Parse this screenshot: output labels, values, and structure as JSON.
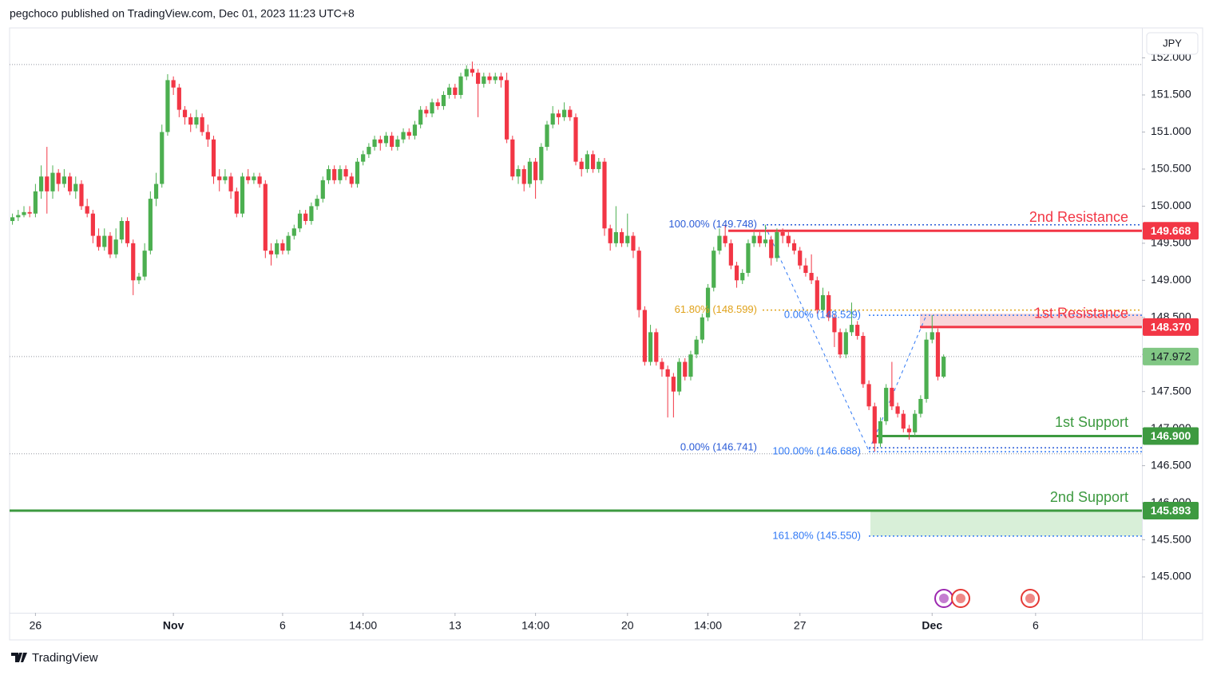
{
  "header": {
    "attribution": "pegchoco published on TradingView.com, Dec 01, 2023 11:23 UTC+8",
    "currency": "JPY",
    "brand": "TradingView"
  },
  "chart_data": {
    "type": "candlestick",
    "up_color": "#4caf50",
    "down_color": "#f23645",
    "xlim": [
      -0.5,
      196.5
    ],
    "xticks": [
      {
        "value": 4,
        "label": "26"
      },
      {
        "value": 28,
        "label": "Nov"
      },
      {
        "value": 47,
        "label": "6"
      },
      {
        "value": 61,
        "label": "14:00"
      },
      {
        "value": 77,
        "label": "13"
      },
      {
        "value": 91,
        "label": "14:00"
      },
      {
        "value": 107,
        "label": "20"
      },
      {
        "value": 121,
        "label": "14:00"
      },
      {
        "value": 137,
        "label": "27"
      },
      {
        "value": 160,
        "label": "Dec"
      },
      {
        "value": 178,
        "label": "6"
      }
    ],
    "ylim": [
      144.516,
      152.404
    ],
    "yticks": [
      {
        "value": 145,
        "label": "145.000"
      },
      {
        "value": 145.5,
        "label": "145.500"
      },
      {
        "value": 146,
        "label": "146.000"
      },
      {
        "value": 146.5,
        "label": "146.500"
      },
      {
        "value": 147,
        "label": "147.000"
      },
      {
        "value": 147.5,
        "label": "147.500"
      },
      {
        "value": 148,
        "label": "148.000"
      },
      {
        "value": 148.5,
        "label": "148.500"
      },
      {
        "value": 149,
        "label": "149.000"
      },
      {
        "value": 149.5,
        "label": "149.500"
      },
      {
        "value": 150,
        "label": "150.000"
      },
      {
        "value": 150.5,
        "label": "150.500"
      },
      {
        "value": 151,
        "label": "151.000"
      },
      {
        "value": 151.5,
        "label": "151.500"
      },
      {
        "value": 152,
        "label": "152.000"
      }
    ],
    "ohlc": [
      [
        149.8,
        149.9,
        149.75,
        149.85
      ],
      [
        149.85,
        149.95,
        149.8,
        149.88
      ],
      [
        149.88,
        150.0,
        149.85,
        149.92
      ],
      [
        149.92,
        150.0,
        149.85,
        149.9
      ],
      [
        149.9,
        150.3,
        149.85,
        150.2
      ],
      [
        150.2,
        150.55,
        150.1,
        150.4
      ],
      [
        150.4,
        150.8,
        149.9,
        150.2
      ],
      [
        150.2,
        150.55,
        150.1,
        150.45
      ],
      [
        150.45,
        150.5,
        150.2,
        150.3
      ],
      [
        150.3,
        150.5,
        150.25,
        150.4
      ],
      [
        150.4,
        150.45,
        150.15,
        150.2
      ],
      [
        150.2,
        150.4,
        150.1,
        150.3
      ],
      [
        150.3,
        150.35,
        149.95,
        150.0
      ],
      [
        150.0,
        150.1,
        149.85,
        149.9
      ],
      [
        149.9,
        149.95,
        149.5,
        149.6
      ],
      [
        149.6,
        149.7,
        149.4,
        149.45
      ],
      [
        149.45,
        149.7,
        149.4,
        149.6
      ],
      [
        149.6,
        149.65,
        149.3,
        149.35
      ],
      [
        149.35,
        149.7,
        149.3,
        149.55
      ],
      [
        149.55,
        149.85,
        149.5,
        149.8
      ],
      [
        149.8,
        149.85,
        149.45,
        149.5
      ],
      [
        149.5,
        149.55,
        148.8,
        149.0
      ],
      [
        149.0,
        149.1,
        148.95,
        149.05
      ],
      [
        149.05,
        149.5,
        149.0,
        149.4
      ],
      [
        149.4,
        150.2,
        149.35,
        150.1
      ],
      [
        150.1,
        150.45,
        150.0,
        150.3
      ],
      [
        150.3,
        151.1,
        150.25,
        151.0
      ],
      [
        151.0,
        151.78,
        150.95,
        151.7
      ],
      [
        151.7,
        151.75,
        151.5,
        151.6
      ],
      [
        151.6,
        151.65,
        151.2,
        151.3
      ],
      [
        151.3,
        151.35,
        151.1,
        151.2
      ],
      [
        151.2,
        151.25,
        151.0,
        151.1
      ],
      [
        151.1,
        151.3,
        151.05,
        151.2
      ],
      [
        151.2,
        151.25,
        150.95,
        151.0
      ],
      [
        151.0,
        151.1,
        150.8,
        150.9
      ],
      [
        150.9,
        150.95,
        150.3,
        150.4
      ],
      [
        150.4,
        150.5,
        150.2,
        150.35
      ],
      [
        150.35,
        150.5,
        150.3,
        150.4
      ],
      [
        150.4,
        150.45,
        150.1,
        150.2
      ],
      [
        150.2,
        150.25,
        149.85,
        149.9
      ],
      [
        149.9,
        150.45,
        149.85,
        150.4
      ],
      [
        150.4,
        150.5,
        150.3,
        150.35
      ],
      [
        150.35,
        150.45,
        150.3,
        150.4
      ],
      [
        150.4,
        150.45,
        150.25,
        150.3
      ],
      [
        150.3,
        150.35,
        149.3,
        149.4
      ],
      [
        149.4,
        149.5,
        149.2,
        149.35
      ],
      [
        149.35,
        149.55,
        149.3,
        149.5
      ],
      [
        149.5,
        149.55,
        149.35,
        149.4
      ],
      [
        149.4,
        149.65,
        149.35,
        149.6
      ],
      [
        149.6,
        149.75,
        149.55,
        149.7
      ],
      [
        149.7,
        149.95,
        149.65,
        149.9
      ],
      [
        149.9,
        149.95,
        149.75,
        149.8
      ],
      [
        149.8,
        150.05,
        149.75,
        150.0
      ],
      [
        150.0,
        150.15,
        149.95,
        150.1
      ],
      [
        150.1,
        150.4,
        150.05,
        150.35
      ],
      [
        150.35,
        150.55,
        150.3,
        150.5
      ],
      [
        150.5,
        150.55,
        150.3,
        150.35
      ],
      [
        150.35,
        150.55,
        150.3,
        150.5
      ],
      [
        150.5,
        150.55,
        150.35,
        150.4
      ],
      [
        150.4,
        150.45,
        150.25,
        150.3
      ],
      [
        150.3,
        150.65,
        150.25,
        150.6
      ],
      [
        150.6,
        150.75,
        150.55,
        150.7
      ],
      [
        150.7,
        150.85,
        150.65,
        150.8
      ],
      [
        150.8,
        150.95,
        150.75,
        150.9
      ],
      [
        150.9,
        150.95,
        150.75,
        150.85
      ],
      [
        150.85,
        151.0,
        150.8,
        150.95
      ],
      [
        150.95,
        151.0,
        150.75,
        150.8
      ],
      [
        150.8,
        150.95,
        150.75,
        150.9
      ],
      [
        150.9,
        151.05,
        150.85,
        151.0
      ],
      [
        151.0,
        151.05,
        150.9,
        150.95
      ],
      [
        150.95,
        151.15,
        150.9,
        151.1
      ],
      [
        151.1,
        151.35,
        151.05,
        151.3
      ],
      [
        151.3,
        151.35,
        151.2,
        151.25
      ],
      [
        151.25,
        151.45,
        151.2,
        151.4
      ],
      [
        151.4,
        151.45,
        151.3,
        151.35
      ],
      [
        151.35,
        151.55,
        151.3,
        151.5
      ],
      [
        151.5,
        151.65,
        151.45,
        151.6
      ],
      [
        151.6,
        151.65,
        151.45,
        151.5
      ],
      [
        151.5,
        151.8,
        151.45,
        151.75
      ],
      [
        151.75,
        151.9,
        151.7,
        151.85
      ],
      [
        151.85,
        151.95,
        151.75,
        151.8
      ],
      [
        151.8,
        151.85,
        151.2,
        151.65
      ],
      [
        151.65,
        151.8,
        151.6,
        151.75
      ],
      [
        151.75,
        151.8,
        151.65,
        151.7
      ],
      [
        151.7,
        151.8,
        151.65,
        151.75
      ],
      [
        151.75,
        151.8,
        151.6,
        151.7
      ],
      [
        151.7,
        151.8,
        150.85,
        150.9
      ],
      [
        150.9,
        150.95,
        150.35,
        150.4
      ],
      [
        150.4,
        150.55,
        150.3,
        150.5
      ],
      [
        150.5,
        150.55,
        150.2,
        150.3
      ],
      [
        150.3,
        150.65,
        150.25,
        150.6
      ],
      [
        150.6,
        150.65,
        150.1,
        150.35
      ],
      [
        150.35,
        150.85,
        150.3,
        150.8
      ],
      [
        150.8,
        151.15,
        150.75,
        151.1
      ],
      [
        151.1,
        151.35,
        151.05,
        151.25
      ],
      [
        151.25,
        151.3,
        151.1,
        151.2
      ],
      [
        151.2,
        151.4,
        151.15,
        151.3
      ],
      [
        151.3,
        151.35,
        151.15,
        151.2
      ],
      [
        151.2,
        151.25,
        150.55,
        150.6
      ],
      [
        150.6,
        150.65,
        150.4,
        150.5
      ],
      [
        150.5,
        150.75,
        150.45,
        150.7
      ],
      [
        150.7,
        150.75,
        150.45,
        150.5
      ],
      [
        150.5,
        150.65,
        150.45,
        150.6
      ],
      [
        150.6,
        150.65,
        149.6,
        149.7
      ],
      [
        149.7,
        149.75,
        149.4,
        149.5
      ],
      [
        149.5,
        150.0,
        149.45,
        149.65
      ],
      [
        149.65,
        149.7,
        149.45,
        149.5
      ],
      [
        149.5,
        149.9,
        149.45,
        149.6
      ],
      [
        149.6,
        149.65,
        149.3,
        149.4
      ],
      [
        149.4,
        149.45,
        148.5,
        148.6
      ],
      [
        148.6,
        148.65,
        147.85,
        147.9
      ],
      [
        147.9,
        148.4,
        147.85,
        148.3
      ],
      [
        148.3,
        148.35,
        147.85,
        147.9
      ],
      [
        147.9,
        147.95,
        147.7,
        147.8
      ],
      [
        147.8,
        147.85,
        147.15,
        147.7
      ],
      [
        147.7,
        147.75,
        147.15,
        147.5
      ],
      [
        147.5,
        147.95,
        147.45,
        147.9
      ],
      [
        147.9,
        147.95,
        147.65,
        147.7
      ],
      [
        147.7,
        148.05,
        147.65,
        148.0
      ],
      [
        148.0,
        148.25,
        147.95,
        148.2
      ],
      [
        148.2,
        148.55,
        148.15,
        148.5
      ],
      [
        148.5,
        148.95,
        148.45,
        148.9
      ],
      [
        148.9,
        149.45,
        148.85,
        149.4
      ],
      [
        149.4,
        149.7,
        149.35,
        149.6
      ],
      [
        149.6,
        149.75,
        149.45,
        149.5
      ],
      [
        149.5,
        149.55,
        149.15,
        149.2
      ],
      [
        149.2,
        149.25,
        148.9,
        149.0
      ],
      [
        149.0,
        149.15,
        148.95,
        149.1
      ],
      [
        149.1,
        149.55,
        149.05,
        149.5
      ],
      [
        149.5,
        149.65,
        149.45,
        149.6
      ],
      [
        149.6,
        149.65,
        149.45,
        149.5
      ],
      [
        149.5,
        149.75,
        149.45,
        149.55
      ],
      [
        149.55,
        149.6,
        149.2,
        149.3
      ],
      [
        149.3,
        149.7,
        149.25,
        149.65
      ],
      [
        149.65,
        149.7,
        149.5,
        149.6
      ],
      [
        149.6,
        149.65,
        149.45,
        149.5
      ],
      [
        149.5,
        149.55,
        149.35,
        149.4
      ],
      [
        149.4,
        149.45,
        149.15,
        149.2
      ],
      [
        149.2,
        149.3,
        149.05,
        149.1
      ],
      [
        149.1,
        149.35,
        148.95,
        149.0
      ],
      [
        149.0,
        149.05,
        148.55,
        148.6
      ],
      [
        148.6,
        148.9,
        148.55,
        148.8
      ],
      [
        148.8,
        148.85,
        148.45,
        148.5
      ],
      [
        148.5,
        148.55,
        148.1,
        148.3
      ],
      [
        148.3,
        148.35,
        147.95,
        148.0
      ],
      [
        148.0,
        148.35,
        147.95,
        148.3
      ],
      [
        148.3,
        148.7,
        148.25,
        148.4
      ],
      [
        148.4,
        148.45,
        148.2,
        148.25
      ],
      [
        148.25,
        148.3,
        147.55,
        147.6
      ],
      [
        147.6,
        147.65,
        147.25,
        147.3
      ],
      [
        147.3,
        147.35,
        146.69,
        146.8
      ],
      [
        146.8,
        147.15,
        146.75,
        147.1
      ],
      [
        147.1,
        147.6,
        147.05,
        147.55
      ],
      [
        147.55,
        147.9,
        147.25,
        147.3
      ],
      [
        147.3,
        147.35,
        147.15,
        147.2
      ],
      [
        147.2,
        147.25,
        146.95,
        147.0
      ],
      [
        147.0,
        147.05,
        146.85,
        146.95
      ],
      [
        146.95,
        147.25,
        146.9,
        147.2
      ],
      [
        147.2,
        147.45,
        147.15,
        147.4
      ],
      [
        147.4,
        148.3,
        147.35,
        148.2
      ],
      [
        148.2,
        148.53,
        148.15,
        148.3
      ],
      [
        148.3,
        148.35,
        147.65,
        147.7
      ],
      [
        147.7,
        148.0,
        147.68,
        147.97
      ]
    ],
    "last_price": {
      "value": 147.972,
      "label": "147.972",
      "color": "#81c784"
    },
    "levels": [
      {
        "name": "2nd Resistance",
        "value": 149.668,
        "label": "149.668",
        "color": "#f23645"
      },
      {
        "name": "1st Resistance",
        "value": 148.37,
        "label": "148.370",
        "color": "#f23645"
      },
      {
        "name": "1st Support",
        "value": 146.9,
        "label": "146.900",
        "color": "#3d9a40"
      },
      {
        "name": "2nd Support",
        "value": 145.893,
        "label": "145.893",
        "color": "#3d9a40"
      }
    ],
    "zones": [
      {
        "from": 148.37,
        "to": 148.55,
        "color": "#f9d6da"
      },
      {
        "from": 145.55,
        "to": 145.893,
        "color": "#d8efd8"
      }
    ],
    "fib_levels": [
      {
        "label": "100.00% (149.748)",
        "value": 149.748,
        "color": "#2a5bd7"
      },
      {
        "label": "61.80% (148.599)",
        "value": 148.599,
        "color": "#e0a21a"
      },
      {
        "label": "0.00% (148.529)",
        "value": 148.529,
        "color": "#3179f5"
      },
      {
        "label": "0.00% (146.741)",
        "value": 146.741,
        "color": "#2a5bd7"
      },
      {
        "label": "100.00% (146.688)",
        "value": 146.688,
        "color": "#3179f5"
      },
      {
        "label": "161.80% (145.550)",
        "value": 145.55,
        "color": "#3179f5"
      }
    ],
    "range_lines": [
      151.91,
      146.66
    ]
  }
}
